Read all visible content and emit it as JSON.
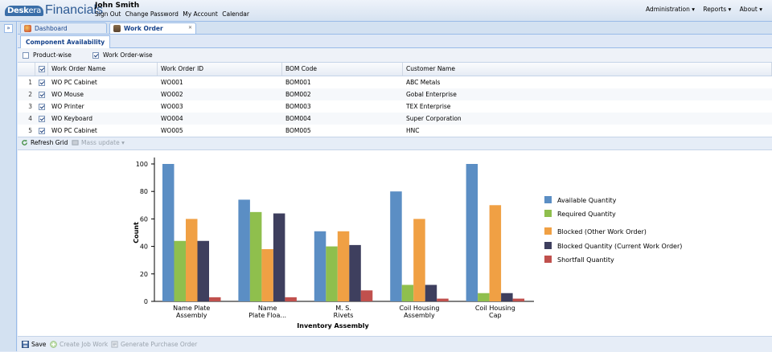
{
  "app": {
    "logo_mark": "Desk",
    "logo_mark2": "era",
    "title": "Financials"
  },
  "user": {
    "name": "John Smith",
    "links": [
      "Sign Out",
      "Change Password",
      "My Account",
      "Calendar"
    ]
  },
  "topnav": [
    "Administration ▾",
    "Reports ▾",
    "About ▾"
  ],
  "tabs": [
    {
      "label": "Dashboard",
      "icon": "dashboard-icon"
    },
    {
      "label": "Work Order",
      "icon": "work-order-icon"
    }
  ],
  "subtab": "Component Availability",
  "options": [
    {
      "label": "Product-wise",
      "checked": false
    },
    {
      "label": "Work Order-wise",
      "checked": true
    }
  ],
  "grid": {
    "headers": [
      "Work Order Name",
      "Work Order ID",
      "BOM Code",
      "Customer Name"
    ],
    "rows": [
      {
        "num": "1",
        "name": "WO PC Cabinet",
        "id": "WO001",
        "bom": "BOM001",
        "customer": "ABC Metals"
      },
      {
        "num": "2",
        "name": "WO Mouse",
        "id": "WO002",
        "bom": "BOM002",
        "customer": "Gobal Enterprise"
      },
      {
        "num": "3",
        "name": "WO Printer",
        "id": "WO003",
        "bom": "BOM003",
        "customer": "TEX Enterprise"
      },
      {
        "num": "4",
        "name": "WO Keyboard",
        "id": "WO004",
        "bom": "BOM004",
        "customer": "Super Corporation"
      },
      {
        "num": "5",
        "name": "WO PC Cabinet",
        "id": "WO005",
        "bom": "BOM005",
        "customer": "HNC"
      }
    ]
  },
  "toolbar": {
    "refresh": "Refresh Grid",
    "mass_update": "Mass update ▾"
  },
  "bottom": {
    "save": "Save",
    "create_job": "Create Job Work",
    "generate_po": "Generate Purchase Order"
  },
  "chart_data": {
    "type": "bar",
    "categories": [
      [
        "Name Plate",
        "Assembly"
      ],
      [
        "Name",
        "Plate Floa..."
      ],
      [
        "M. S.",
        "Rivets"
      ],
      [
        "Coil Housing",
        "Assembly"
      ],
      [
        "Coil Housing",
        "Cap"
      ]
    ],
    "series": [
      {
        "name": "Available Quantity",
        "color": "#5b8ec4",
        "values": [
          100,
          74,
          51,
          80,
          100
        ]
      },
      {
        "name": "Required Quantity",
        "color": "#8fbf4d",
        "values": [
          44,
          65,
          40,
          12,
          6
        ]
      },
      {
        "name": "Blocked (Other Work Order)",
        "color": "#f0a044",
        "values": [
          60,
          38,
          51,
          60,
          70
        ]
      },
      {
        "name": "Blocked Quantity (Current Work Order)",
        "color": "#3e3f5e",
        "values": [
          44,
          64,
          41,
          12,
          6
        ]
      },
      {
        "name": "Shortfall Quantity",
        "color": "#c0504d",
        "values": [
          3,
          3,
          8,
          2,
          2
        ]
      }
    ],
    "xlabel": "Inventory Assembly",
    "ylabel": "Count",
    "ylim": [
      0,
      100
    ],
    "yticks": [
      "0",
      "20",
      "40",
      "60",
      "80",
      "100"
    ],
    "legend_position": "right"
  }
}
